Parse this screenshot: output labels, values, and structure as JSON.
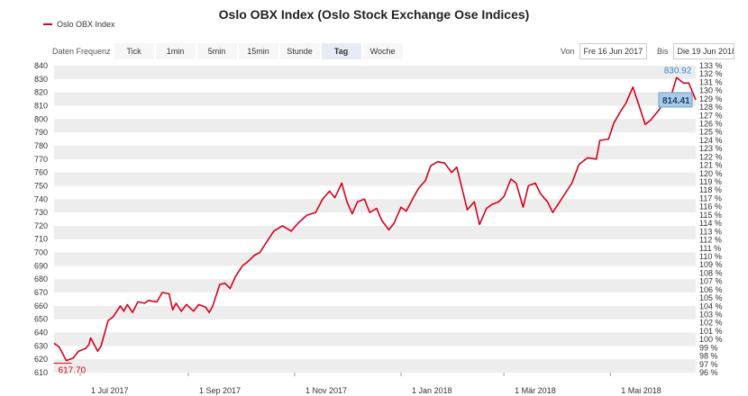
{
  "chart_data": {
    "type": "line",
    "title": "Oslo OBX Index (Oslo Stock Exchange Ose Indices)",
    "series": [
      {
        "name": "Oslo OBX Index",
        "color": "#d6001c",
        "points": [
          [
            "2017-06-16",
            632
          ],
          [
            "2017-06-19",
            629
          ],
          [
            "2017-06-21",
            624
          ],
          [
            "2017-06-23",
            619
          ],
          [
            "2017-06-27",
            621
          ],
          [
            "2017-06-30",
            626
          ],
          [
            "2017-07-04",
            628
          ],
          [
            "2017-07-06",
            631
          ],
          [
            "2017-07-07",
            636
          ],
          [
            "2017-07-11",
            626
          ],
          [
            "2017-07-13",
            630
          ],
          [
            "2017-07-17",
            649
          ],
          [
            "2017-07-20",
            652
          ],
          [
            "2017-07-24",
            660
          ],
          [
            "2017-07-26",
            656
          ],
          [
            "2017-07-28",
            661
          ],
          [
            "2017-07-31",
            655
          ],
          [
            "2017-08-03",
            663
          ],
          [
            "2017-08-07",
            662
          ],
          [
            "2017-08-09",
            664
          ],
          [
            "2017-08-14",
            663
          ],
          [
            "2017-08-17",
            670
          ],
          [
            "2017-08-21",
            669
          ],
          [
            "2017-08-23",
            657
          ],
          [
            "2017-08-25",
            662
          ],
          [
            "2017-08-28",
            656
          ],
          [
            "2017-08-31",
            661
          ],
          [
            "2017-09-04",
            656
          ],
          [
            "2017-09-07",
            661
          ],
          [
            "2017-09-11",
            659
          ],
          [
            "2017-09-13",
            655
          ],
          [
            "2017-09-15",
            660
          ],
          [
            "2017-09-19",
            676
          ],
          [
            "2017-09-22",
            677
          ],
          [
            "2017-09-25",
            673
          ],
          [
            "2017-09-28",
            682
          ],
          [
            "2017-10-02",
            690
          ],
          [
            "2017-10-05",
            693
          ],
          [
            "2017-10-09",
            698
          ],
          [
            "2017-10-12",
            700
          ],
          [
            "2017-10-16",
            708
          ],
          [
            "2017-10-20",
            716
          ],
          [
            "2017-10-25",
            720
          ],
          [
            "2017-10-30",
            716
          ],
          [
            "2017-11-03",
            722
          ],
          [
            "2017-11-08",
            728
          ],
          [
            "2017-11-13",
            730
          ],
          [
            "2017-11-17",
            740
          ],
          [
            "2017-11-21",
            746
          ],
          [
            "2017-11-24",
            741
          ],
          [
            "2017-11-28",
            752
          ],
          [
            "2017-12-01",
            738
          ],
          [
            "2017-12-04",
            729
          ],
          [
            "2017-12-07",
            738
          ],
          [
            "2017-12-11",
            740
          ],
          [
            "2017-12-14",
            730
          ],
          [
            "2017-12-18",
            733
          ],
          [
            "2017-12-21",
            724
          ],
          [
            "2017-12-25",
            717
          ],
          [
            "2017-12-28",
            722
          ],
          [
            "2018-01-01",
            734
          ],
          [
            "2018-01-04",
            731
          ],
          [
            "2018-01-08",
            741
          ],
          [
            "2018-01-11",
            748
          ],
          [
            "2018-01-15",
            754
          ],
          [
            "2018-01-18",
            765
          ],
          [
            "2018-01-22",
            768
          ],
          [
            "2018-01-26",
            767
          ],
          [
            "2018-01-30",
            760
          ],
          [
            "2018-02-02",
            764
          ],
          [
            "2018-02-05",
            748
          ],
          [
            "2018-02-08",
            732
          ],
          [
            "2018-02-12",
            738
          ],
          [
            "2018-02-15",
            721
          ],
          [
            "2018-02-19",
            733
          ],
          [
            "2018-02-22",
            736
          ],
          [
            "2018-02-26",
            738
          ],
          [
            "2018-03-01",
            742
          ],
          [
            "2018-03-05",
            755
          ],
          [
            "2018-03-08",
            752
          ],
          [
            "2018-03-12",
            734
          ],
          [
            "2018-03-15",
            750
          ],
          [
            "2018-03-19",
            752
          ],
          [
            "2018-03-22",
            744
          ],
          [
            "2018-03-26",
            738
          ],
          [
            "2018-03-29",
            730
          ],
          [
            "2018-04-02",
            738
          ],
          [
            "2018-04-05",
            744
          ],
          [
            "2018-04-09",
            752
          ],
          [
            "2018-04-13",
            766
          ],
          [
            "2018-04-18",
            771
          ],
          [
            "2018-04-23",
            770
          ],
          [
            "2018-04-25",
            784
          ],
          [
            "2018-04-30",
            785
          ],
          [
            "2018-05-03",
            797
          ],
          [
            "2018-05-07",
            806
          ],
          [
            "2018-05-10",
            812
          ],
          [
            "2018-05-14",
            824
          ],
          [
            "2018-05-17",
            812
          ],
          [
            "2018-05-21",
            796
          ],
          [
            "2018-05-24",
            799
          ],
          [
            "2018-05-29",
            807
          ],
          [
            "2018-06-01",
            813
          ],
          [
            "2018-06-05",
            818
          ],
          [
            "2018-06-08",
            831
          ],
          [
            "2018-06-12",
            827
          ],
          [
            "2018-06-15",
            827
          ],
          [
            "2018-06-19",
            814.41
          ]
        ]
      }
    ],
    "annotations": {
      "min_label": "617.70",
      "max_label": "830.92",
      "last_label": "814.41"
    },
    "xlim": [
      "2017-06-16",
      "2018-06-19"
    ],
    "xticks": [
      {
        "label": "1 Jul 2017",
        "date": "2017-07-01"
      },
      {
        "label": "1 Sep 2017",
        "date": "2017-09-01"
      },
      {
        "label": "1 Nov 2017",
        "date": "2017-11-01"
      },
      {
        "label": "1 Jan 2018",
        "date": "2018-01-01"
      },
      {
        "label": "1 Mär 2018",
        "date": "2018-03-01"
      },
      {
        "label": "1 Mai 2018",
        "date": "2018-05-01"
      }
    ],
    "ylim": [
      610,
      840
    ],
    "yticks": [
      610,
      620,
      630,
      640,
      650,
      660,
      670,
      680,
      690,
      700,
      710,
      720,
      730,
      740,
      750,
      760,
      770,
      780,
      790,
      800,
      810,
      820,
      830,
      840
    ],
    "y2ticks": [
      "96 %",
      "97 %",
      "98 %",
      "99 %",
      "100 %",
      "101 %",
      "102 %",
      "103 %",
      "104 %",
      "105 %",
      "106 %",
      "107 %",
      "108 %",
      "109 %",
      "110 %",
      "111 %",
      "112 %",
      "113 %",
      "114 %",
      "115 %",
      "116 %",
      "117 %",
      "118 %",
      "119 %",
      "120 %",
      "121 %",
      "122 %",
      "123 %",
      "124 %",
      "125 %",
      "126 %",
      "127 %",
      "128 %",
      "129 %",
      "130 %",
      "131 %",
      "132 %",
      "133 %"
    ],
    "y2lim": [
      96,
      133
    ],
    "grid": "alternating horizontal bands",
    "legend": "top-left"
  },
  "toolbar": {
    "label": "Daten Frequenz",
    "buttons": [
      "Tick",
      "1min",
      "5min",
      "15min",
      "Stunde",
      "Tag",
      "Woche"
    ],
    "active": "Tag"
  },
  "range": {
    "from_label": "Von",
    "from_value": "Fre 16 Jun 2017",
    "to_label": "Bis",
    "to_value": "Die 19 Jun 2018"
  },
  "colors": {
    "line": "#d6001c",
    "band": "#ededed",
    "max_label": "#3a87c8",
    "last_label_bg": "#a9cbe6"
  }
}
